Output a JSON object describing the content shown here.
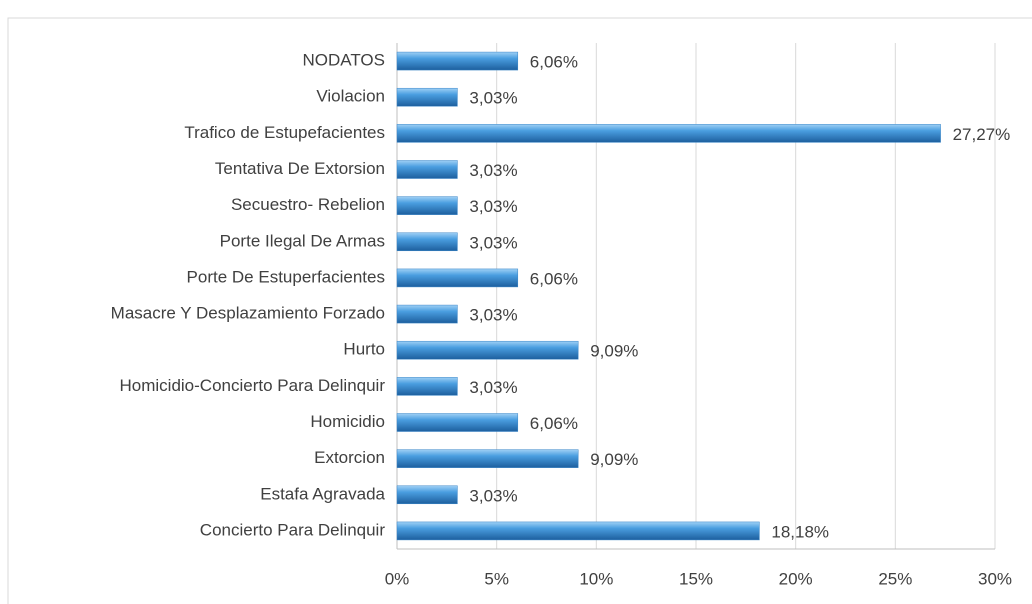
{
  "chart_data": {
    "type": "bar",
    "orientation": "horizontal",
    "color": "#3a86c8",
    "categories": [
      "Concierto Para Delinquir",
      "Estafa Agravada",
      "Extorcion",
      "Homicidio",
      "Homicidio-Concierto Para Delinquir",
      "Hurto",
      "Masacre Y Desplazamiento Forzado",
      "Porte De Estuperfacientes",
      "Porte Ilegal De Armas",
      "Secuestro- Rebelion",
      "Tentativa De Extorsion",
      "Trafico de Estupefacientes",
      "Violacion",
      "NODATOS"
    ],
    "values": [
      18.18,
      3.03,
      9.09,
      6.06,
      3.03,
      9.09,
      3.03,
      6.06,
      3.03,
      3.03,
      3.03,
      27.27,
      3.03,
      6.06
    ],
    "value_labels": [
      "18,18%",
      "3,03%",
      "9,09%",
      "6,06%",
      "3,03%",
      "9,09%",
      "3,03%",
      "6,06%",
      "3,03%",
      "3,03%",
      "3,03%",
      "27,27%",
      "3,03%",
      "6,06%"
    ],
    "xlim": [
      0,
      30
    ],
    "xticks": [
      {
        "value": 0,
        "label": "0%"
      },
      {
        "value": 5,
        "label": "5%"
      },
      {
        "value": 10,
        "label": "10%"
      },
      {
        "value": 15,
        "label": "15%"
      },
      {
        "value": 20,
        "label": "20%"
      },
      {
        "value": 25,
        "label": "25%"
      },
      {
        "value": 30,
        "label": "30%"
      }
    ],
    "grid": true
  }
}
